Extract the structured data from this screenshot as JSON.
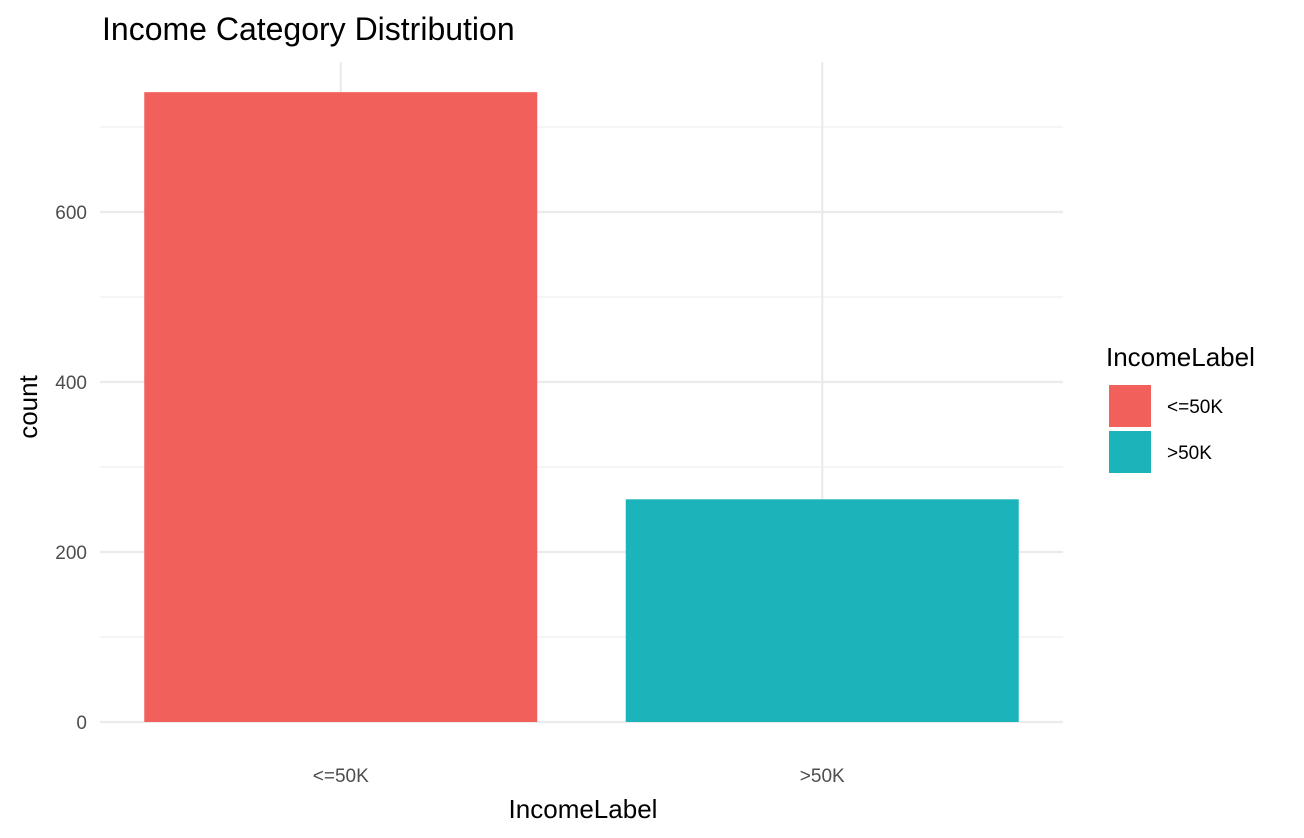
{
  "chart_data": {
    "type": "bar",
    "title": "Income Category Distribution",
    "xlabel": "IncomeLabel",
    "ylabel": "count",
    "categories": [
      "<=50K",
      ">50K"
    ],
    "values": [
      741,
      262
    ],
    "colors": [
      "#F8766D",
      "#00BFC4"
    ],
    "bar_colors": [
      "#F2605B",
      "#1BB4BA"
    ],
    "ylim": [
      0,
      760
    ],
    "y_ticks": [
      0,
      200,
      400,
      600
    ],
    "y_tick_labels": [
      "0",
      "200",
      "400",
      "600"
    ],
    "y_minor_ticks": [
      100,
      300,
      500,
      700
    ],
    "grid": true,
    "legend": {
      "title": "IncomeLabel",
      "placement": "right",
      "entries": [
        "<=50K",
        ">50K"
      ]
    }
  }
}
